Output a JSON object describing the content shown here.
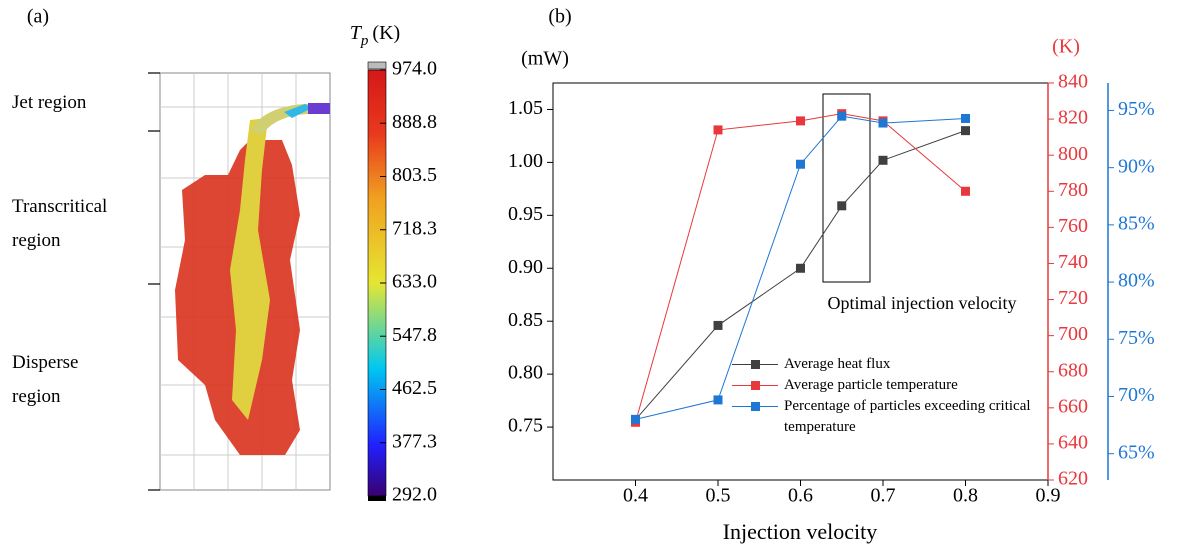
{
  "chart_data": [
    {
      "type": "colorbar",
      "label": "(a)",
      "region_labels": [
        "Jet region",
        "Transcritical region",
        "Disperse region"
      ],
      "colorbar_title": {
        "symbol": "T",
        "subscript": "p",
        "unit": "(K)"
      },
      "colorbar_lim": [
        292,
        974
      ],
      "colorbar_ticks": [
        {
          "value": 974,
          "label": "974.0"
        },
        888.8,
        803.5,
        718.3,
        {
          "value": 633,
          "label": "633.0"
        },
        547.8,
        462.5,
        377.3,
        {
          "value": 292,
          "label": "292.0"
        }
      ]
    },
    {
      "type": "line",
      "label": "(b)",
      "xlabel": "Injection velocity",
      "ylabel": "(mW)",
      "y2label": "(K)",
      "annotation": "Optimal injection velocity",
      "x": [
        0.4,
        0.5,
        0.6,
        0.65,
        0.7,
        0.8
      ],
      "xlim": [
        0.3,
        0.9
      ],
      "xticks": [
        0.4,
        0.5,
        0.6,
        0.7,
        0.8,
        0.9
      ],
      "ylim": [
        0.7,
        1.075
      ],
      "yticks": [
        0.75,
        {
          "value": 0.8,
          "label": "0.80"
        },
        0.85,
        {
          "value": 0.9,
          "label": "0.90"
        },
        0.95,
        {
          "value": 1.0,
          "label": "1.00"
        },
        1.05
      ],
      "y2lim": [
        620,
        840
      ],
      "y2ticks": [
        620,
        640,
        660,
        680,
        700,
        720,
        740,
        760,
        780,
        800,
        820,
        840
      ],
      "y2color": "#e8383d",
      "y3lim": [
        62.7,
        97.4
      ],
      "y3ticks": [
        {
          "value": 65,
          "label": "65%"
        },
        {
          "value": 70,
          "label": "70%"
        },
        {
          "value": 75,
          "label": "75%"
        },
        {
          "value": 80,
          "label": "80%"
        },
        {
          "value": 85,
          "label": "85%"
        },
        {
          "value": 90,
          "label": "90%"
        },
        {
          "value": 95,
          "label": "95%"
        }
      ],
      "y3color": "#1f77d4",
      "legend": "lower right",
      "series": [
        {
          "name": "Average heat flux",
          "color": "#404040",
          "axis": "y",
          "values": [
            0.757,
            0.846,
            0.9,
            0.959,
            1.002,
            1.03
          ]
        },
        {
          "name": "Average particle temperature",
          "color": "#e8383d",
          "axis": "y2",
          "values": [
            652,
            814,
            819,
            823,
            819,
            780
          ]
        },
        {
          "name": "Percentage of particles exceeding critical temperature",
          "color": "#1f77d4",
          "axis": "y3",
          "values": [
            68.0,
            69.7,
            90.3,
            94.5,
            93.9,
            94.3
          ]
        }
      ]
    }
  ]
}
